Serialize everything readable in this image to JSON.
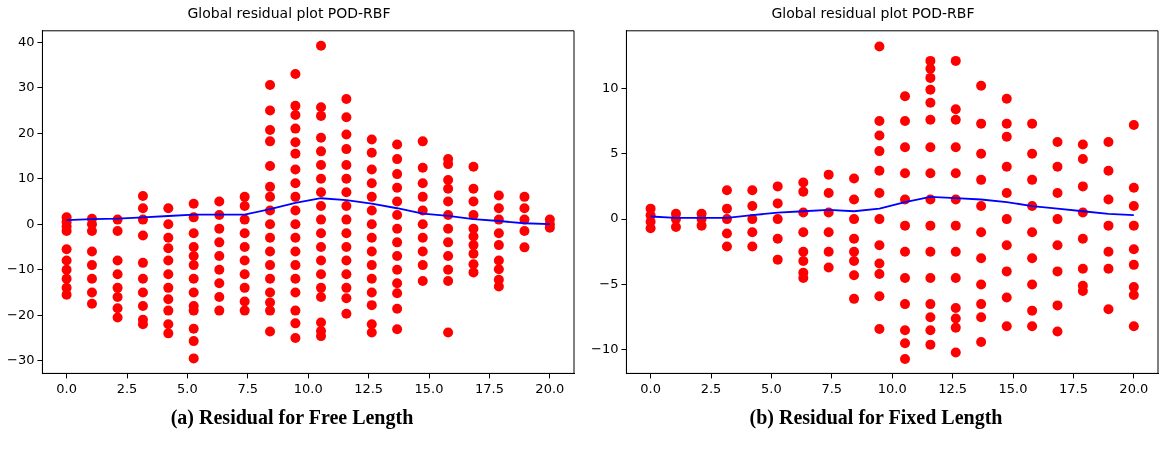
{
  "chart_data": [
    {
      "type": "scatter",
      "title": "Global residual plot POD-RBF",
      "annotations": [
        "(a) Residual for Free Length"
      ],
      "grid": false,
      "legend": false,
      "marker": "circle",
      "xlim": [
        -1,
        21
      ],
      "xticks": [
        {
          "value": 0,
          "label": "0.0"
        },
        {
          "value": 2.5,
          "label": "2.5"
        },
        {
          "value": 5,
          "label": "5.0"
        },
        {
          "value": 7.5,
          "label": "7.5"
        },
        {
          "value": 10,
          "label": "10.0"
        },
        {
          "value": 12.5,
          "label": "12.5"
        },
        {
          "value": 15,
          "label": "15.0"
        },
        {
          "value": 17.5,
          "label": "17.5"
        },
        {
          "value": 20,
          "label": "20.0"
        }
      ],
      "ylim": [
        -32.8,
        42.5
      ],
      "yticks": [
        {
          "value": -30,
          "label": "−30"
        },
        {
          "value": -20,
          "label": "−20"
        },
        {
          "value": -10,
          "label": "−10"
        },
        0,
        10,
        20,
        30,
        40
      ],
      "series": [
        {
          "type": "scatter",
          "color": "#ff0000",
          "x": [
            0,
            0,
            0,
            0,
            0,
            0,
            0,
            0,
            0,
            0,
            1.05,
            1.05,
            1.05,
            1.05,
            1.05,
            1.05,
            1.05,
            1.05,
            2.11,
            2.11,
            2.11,
            2.11,
            2.11,
            2.11,
            2.11,
            2.11,
            3.16,
            3.16,
            3.16,
            3.16,
            3.16,
            3.16,
            3.16,
            3.16,
            3.16,
            3.16,
            4.21,
            4.21,
            4.21,
            4.21,
            4.21,
            4.21,
            4.21,
            4.21,
            4.21,
            4.21,
            4.21,
            5.26,
            5.26,
            5.26,
            5.26,
            5.26,
            5.26,
            5.26,
            5.26,
            5.26,
            5.26,
            5.26,
            5.26,
            5.26,
            6.32,
            6.32,
            6.32,
            6.32,
            6.32,
            6.32,
            6.32,
            6.32,
            6.32,
            7.37,
            7.37,
            7.37,
            7.37,
            7.37,
            7.37,
            7.37,
            7.37,
            7.37,
            7.37,
            8.42,
            8.42,
            8.42,
            8.42,
            8.42,
            8.42,
            8.42,
            8.42,
            8.42,
            8.42,
            8.42,
            8.42,
            8.42,
            8.42,
            8.42,
            8.42,
            8.42,
            9.47,
            9.47,
            9.47,
            9.47,
            9.47,
            9.47,
            9.47,
            9.47,
            9.47,
            9.47,
            9.47,
            9.47,
            9.47,
            9.47,
            9.47,
            9.47,
            9.47,
            9.47,
            9.47,
            10.53,
            10.53,
            10.53,
            10.53,
            10.53,
            10.53,
            10.53,
            10.53,
            10.53,
            10.53,
            10.53,
            10.53,
            10.53,
            10.53,
            10.53,
            10.53,
            10.53,
            10.53,
            10.53,
            11.58,
            11.58,
            11.58,
            11.58,
            11.58,
            11.58,
            11.58,
            11.58,
            11.58,
            11.58,
            11.58,
            11.58,
            11.58,
            11.58,
            11.58,
            11.58,
            12.63,
            12.63,
            12.63,
            12.63,
            12.63,
            12.63,
            12.63,
            12.63,
            12.63,
            12.63,
            12.63,
            12.63,
            12.63,
            12.63,
            12.63,
            13.68,
            13.68,
            13.68,
            13.68,
            13.68,
            13.68,
            13.68,
            13.68,
            13.68,
            13.68,
            13.68,
            13.68,
            13.68,
            13.68,
            14.74,
            14.74,
            14.74,
            14.74,
            14.74,
            14.74,
            14.74,
            14.74,
            14.74,
            14.74,
            15.79,
            15.79,
            15.79,
            15.79,
            15.79,
            15.79,
            15.79,
            15.79,
            15.79,
            15.79,
            15.79,
            15.79,
            16.84,
            16.84,
            16.84,
            16.84,
            16.84,
            16.84,
            16.84,
            16.84,
            16.84,
            16.84,
            17.89,
            17.89,
            17.89,
            17.89,
            17.89,
            17.89,
            17.89,
            17.89,
            17.89,
            18.95,
            18.95,
            18.95,
            18.95,
            18.95,
            20,
            20,
            20
          ],
          "values": [
            1.5,
            0.5,
            -0.5,
            -1.5,
            -5.5,
            -8,
            -10,
            -12,
            -14,
            -15.5,
            1.2,
            0,
            -1.5,
            -6,
            -9,
            -12,
            -15,
            -17.5,
            1,
            -1.5,
            -8,
            -11,
            -14,
            -16,
            -18.5,
            -20.5,
            6.2,
            3.5,
            1,
            -2.5,
            -8.5,
            -12,
            -15,
            -18,
            -21,
            -22,
            3.5,
            0,
            -3,
            -5.3,
            -8,
            -11,
            -14,
            -16.5,
            -19,
            -22,
            -24,
            4.5,
            1.5,
            -2,
            -5,
            -7,
            -9,
            -12,
            -15,
            -18,
            -19,
            -23,
            -25.7,
            -29.5,
            5,
            2,
            -1,
            -4,
            -7,
            -10,
            -13,
            -16,
            -19,
            6,
            4,
            1,
            -2,
            -5,
            -8,
            -11,
            -14,
            -17,
            -19,
            30.6,
            25,
            20.7,
            18.2,
            12.8,
            8.2,
            6,
            3,
            0,
            -3,
            -6,
            -9,
            -12,
            -15,
            -17.2,
            -19,
            -23.6,
            33,
            26,
            24,
            21,
            18,
            15.5,
            12,
            9,
            6,
            3,
            0,
            -3,
            -6,
            -9,
            -12,
            -15,
            -19,
            -21.8,
            -25,
            39.2,
            25.7,
            23.8,
            19,
            16,
            13,
            10,
            7,
            4,
            1,
            -2,
            -5,
            -8,
            -11,
            -14,
            -16,
            -21.6,
            -23.5,
            -24.6,
            27.5,
            23.5,
            19.7,
            16.5,
            13,
            10,
            7,
            4,
            1,
            -2,
            -5,
            -8,
            -11,
            -14,
            -16.3,
            -19.7,
            18.6,
            15.7,
            12,
            9,
            6,
            3,
            0,
            -3,
            -6,
            -9,
            -12,
            -15,
            -17.8,
            -22,
            -23.8,
            17.5,
            14.3,
            11,
            8,
            5,
            2,
            -1,
            -4,
            -7,
            -10,
            -13,
            -15.2,
            -18.6,
            -23.1,
            18.2,
            12.4,
            9,
            6,
            3,
            0,
            -3,
            -6,
            -9,
            -12.5,
            14.3,
            13.2,
            9.7,
            7.8,
            5,
            2,
            -1,
            -4,
            -7,
            -10,
            -12.5,
            -23.8,
            12.6,
            7.8,
            5,
            2,
            -1,
            -2.7,
            -4.6,
            -6.5,
            -8.8,
            -10.6,
            6.3,
            3.5,
            1,
            -2,
            -4.6,
            -8,
            -9.9,
            -12.2,
            -13.7,
            6,
            3.5,
            1,
            -1.5,
            -5.1,
            1,
            0,
            -0.8
          ]
        },
        {
          "type": "line",
          "color": "#0000ff",
          "marker": "none",
          "line_style": "solid",
          "x": [
            0,
            1.05,
            2.11,
            3.16,
            4.21,
            5.26,
            6.32,
            7.37,
            8.42,
            9.47,
            10.53,
            11.58,
            12.63,
            13.68,
            14.74,
            15.79,
            16.84,
            17.89,
            18.95,
            20
          ],
          "values": [
            0.9,
            1.1,
            1.2,
            1.5,
            1.8,
            2.1,
            2.1,
            2.1,
            3.3,
            4.7,
            5.7,
            5.3,
            4.5,
            3.5,
            2.3,
            1.8,
            1.1,
            0.7,
            0.2,
            0
          ]
        }
      ]
    },
    {
      "type": "scatter",
      "title": "Global residual plot POD-RBF",
      "annotations": [
        "(b) Residual for Fixed Length"
      ],
      "grid": false,
      "legend": false,
      "marker": "circle",
      "xlim": [
        -1,
        21
      ],
      "xticks": [
        {
          "value": 0,
          "label": "0.0"
        },
        {
          "value": 2.5,
          "label": "2.5"
        },
        {
          "value": 5,
          "label": "5.0"
        },
        {
          "value": 7.5,
          "label": "7.5"
        },
        {
          "value": 10,
          "label": "10.0"
        },
        {
          "value": 12.5,
          "label": "12.5"
        },
        {
          "value": 15,
          "label": "15.0"
        },
        {
          "value": 17.5,
          "label": "17.5"
        },
        {
          "value": 20,
          "label": "20.0"
        }
      ],
      "ylim": [
        -11.8,
        14.4
      ],
      "yticks": [
        {
          "value": -10,
          "label": "−10"
        },
        {
          "value": -5,
          "label": "−5"
        },
        0,
        5,
        10
      ],
      "series": [
        {
          "type": "scatter",
          "color": "#ff0000",
          "x": [
            0,
            0,
            0,
            0,
            1.05,
            1.05,
            1.05,
            2.11,
            2.11,
            2.11,
            3.16,
            3.16,
            3.16,
            3.16,
            3.16,
            4.21,
            4.21,
            4.21,
            4.21,
            4.21,
            5.26,
            5.26,
            5.26,
            5.26,
            5.26,
            6.32,
            6.32,
            6.32,
            6.32,
            6.32,
            6.32,
            6.32,
            6.32,
            7.37,
            7.37,
            7.37,
            7.37,
            7.37,
            7.37,
            8.42,
            8.42,
            8.42,
            8.42,
            8.42,
            8.42,
            8.42,
            8.42,
            9.47,
            9.47,
            9.47,
            9.47,
            9.47,
            9.47,
            9.47,
            9.47,
            9.47,
            9.47,
            9.47,
            9.47,
            10.53,
            10.53,
            10.53,
            10.53,
            10.53,
            10.53,
            10.53,
            10.53,
            10.53,
            10.53,
            10.53,
            10.53,
            11.58,
            11.58,
            11.58,
            11.58,
            11.58,
            11.58,
            11.58,
            11.58,
            11.58,
            11.58,
            11.58,
            11.58,
            11.58,
            11.58,
            11.58,
            11.58,
            12.63,
            12.63,
            12.63,
            12.63,
            12.63,
            12.63,
            12.63,
            12.63,
            12.63,
            12.63,
            12.63,
            12.63,
            12.63,
            13.68,
            13.68,
            13.68,
            13.68,
            13.68,
            13.68,
            13.68,
            13.68,
            13.68,
            13.68,
            13.68,
            14.74,
            14.74,
            14.74,
            14.74,
            14.74,
            14.74,
            14.74,
            14.74,
            14.74,
            14.74,
            15.79,
            15.79,
            15.79,
            15.79,
            15.79,
            15.79,
            15.79,
            15.79,
            15.79,
            16.84,
            16.84,
            16.84,
            16.84,
            16.84,
            16.84,
            16.84,
            16.84,
            17.89,
            17.89,
            17.89,
            17.89,
            17.89,
            17.89,
            17.89,
            17.89,
            18.95,
            18.95,
            18.95,
            18.95,
            18.95,
            18.95,
            18.95,
            20,
            20,
            20,
            20,
            20,
            20,
            20,
            20,
            20
          ],
          "values": [
            0.8,
            0.3,
            -0.2,
            -0.7,
            0.4,
            0,
            -0.6,
            0.4,
            0,
            -0.5,
            2.2,
            0.8,
            0,
            -1.1,
            -2.1,
            2.2,
            1,
            0,
            -1,
            -2.1,
            2.5,
            1.2,
            0,
            -1.5,
            -3.1,
            2.8,
            2.1,
            0.5,
            -1,
            -2.5,
            -3.2,
            -4.1,
            -4.5,
            3.4,
            2,
            0.5,
            -1,
            -2.5,
            -3.7,
            3.1,
            1.5,
            0,
            -1.5,
            -2.5,
            -3.2,
            -4.3,
            -6.1,
            13.2,
            7.5,
            6.4,
            5.2,
            3.7,
            2,
            0,
            -2,
            -3.4,
            -4.2,
            -5.9,
            -8.4,
            9.4,
            7.5,
            5.5,
            3.5,
            1.5,
            -0.5,
            -2.5,
            -4.5,
            -6.5,
            -8.5,
            -9.5,
            -10.7,
            12.1,
            11.5,
            10.8,
            9.9,
            8.9,
            7.6,
            5.5,
            3.5,
            1.5,
            -0.5,
            -2.5,
            -4.5,
            -6.5,
            -7.5,
            -8.5,
            -9.6,
            12.1,
            8.4,
            7.6,
            5.5,
            3.5,
            1.5,
            -0.5,
            -2.5,
            -4.5,
            -6.8,
            -7.6,
            -8.3,
            -10.2,
            10.2,
            7.3,
            5,
            3,
            1,
            -1,
            -3,
            -5,
            -6.5,
            -7.5,
            -9.4,
            9.2,
            7.3,
            6.3,
            4,
            2,
            0,
            -2,
            -4,
            -6,
            -8.2,
            7.3,
            5,
            3,
            1,
            -1,
            -3,
            -5,
            -7,
            -8.2,
            5.9,
            4,
            2,
            0,
            -2,
            -4,
            -6.6,
            -8.6,
            5.7,
            4.6,
            2.5,
            0.5,
            -1.5,
            -3.8,
            -5.1,
            -5.5,
            5.9,
            3.7,
            1.5,
            -0.5,
            -2.5,
            -3.8,
            -6.9,
            7.2,
            2.4,
            1,
            -0.5,
            -2.3,
            -3.5,
            -5.2,
            -5.8,
            -8.2
          ]
        },
        {
          "type": "line",
          "color": "#0000ff",
          "marker": "none",
          "line_style": "solid",
          "x": [
            0,
            1.05,
            2.11,
            3.16,
            4.21,
            5.26,
            6.32,
            7.37,
            8.42,
            9.47,
            10.53,
            11.58,
            12.63,
            13.68,
            14.74,
            15.79,
            16.84,
            17.89,
            18.95,
            20
          ],
          "values": [
            0.2,
            0.1,
            0.1,
            0.1,
            0.3,
            0.5,
            0.6,
            0.7,
            0.6,
            0.8,
            1.3,
            1.7,
            1.6,
            1.5,
            1.3,
            1,
            0.8,
            0.6,
            0.4,
            0.3
          ]
        }
      ]
    }
  ]
}
